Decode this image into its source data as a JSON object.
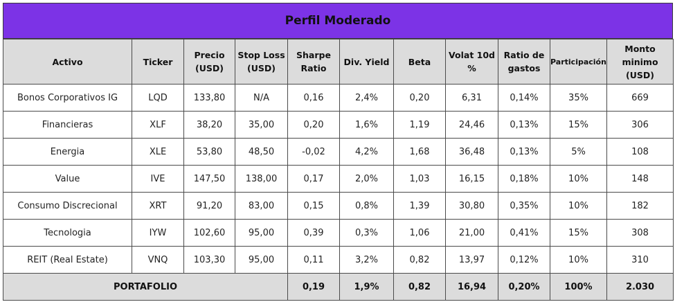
{
  "title": "Perfil Moderado",
  "headers": {
    "activo": "Activo",
    "ticker": "Ticker",
    "precio": "Precio (USD)",
    "stop_loss": "Stop Loss (USD)",
    "sharpe": "Sharpe Ratio",
    "div_yield": "Div. Yield",
    "beta": "Beta",
    "volat": "Volat 10d %",
    "ratio_gastos": "Ratio de gastos",
    "participacion": "Participación",
    "monto_minimo": "Monto minimo (USD)"
  },
  "rows": [
    {
      "activo": "Bonos Corporativos IG",
      "ticker": "LQD",
      "precio": "133,80",
      "stop_loss": "N/A",
      "sharpe": "0,16",
      "div_yield": "2,4%",
      "beta": "0,20",
      "volat": "6,31",
      "ratio_gastos": "0,14%",
      "participacion": "35%",
      "monto_minimo": "669"
    },
    {
      "activo": "Financieras",
      "ticker": "XLF",
      "precio": "38,20",
      "stop_loss": "35,00",
      "sharpe": "0,20",
      "div_yield": "1,6%",
      "beta": "1,19",
      "volat": "24,46",
      "ratio_gastos": "0,13%",
      "participacion": "15%",
      "monto_minimo": "306"
    },
    {
      "activo": "Energia",
      "ticker": "XLE",
      "precio": "53,80",
      "stop_loss": "48,50",
      "sharpe": "-0,02",
      "div_yield": "4,2%",
      "beta": "1,68",
      "volat": "36,48",
      "ratio_gastos": "0,13%",
      "participacion": "5%",
      "monto_minimo": "108"
    },
    {
      "activo": "Value",
      "ticker": "IVE",
      "precio": "147,50",
      "stop_loss": "138,00",
      "sharpe": "0,17",
      "div_yield": "2,0%",
      "beta": "1,03",
      "volat": "16,15",
      "ratio_gastos": "0,18%",
      "participacion": "10%",
      "monto_minimo": "148"
    },
    {
      "activo": "Consumo Discrecional",
      "ticker": "XRT",
      "precio": "91,20",
      "stop_loss": "83,00",
      "sharpe": "0,15",
      "div_yield": "0,8%",
      "beta": "1,39",
      "volat": "30,80",
      "ratio_gastos": "0,35%",
      "participacion": "10%",
      "monto_minimo": "182"
    },
    {
      "activo": "Tecnologia",
      "ticker": "IYW",
      "precio": "102,60",
      "stop_loss": "95,00",
      "sharpe": "0,39",
      "div_yield": "0,3%",
      "beta": "1,06",
      "volat": "21,00",
      "ratio_gastos": "0,41%",
      "participacion": "15%",
      "monto_minimo": "308"
    },
    {
      "activo": "REIT (Real Estate)",
      "ticker": "VNQ",
      "precio": "103,30",
      "stop_loss": "95,00",
      "sharpe": "0,11",
      "div_yield": "3,2%",
      "beta": "0,82",
      "volat": "13,97",
      "ratio_gastos": "0,12%",
      "participacion": "10%",
      "monto_minimo": "310"
    }
  ],
  "total": {
    "label": "PORTAFOLIO",
    "sharpe": "0,19",
    "div_yield": "1,9%",
    "beta": "0,82",
    "volat": "16,94",
    "ratio_gastos": "0,20%",
    "participacion": "100%",
    "monto_minimo": "2.030"
  }
}
